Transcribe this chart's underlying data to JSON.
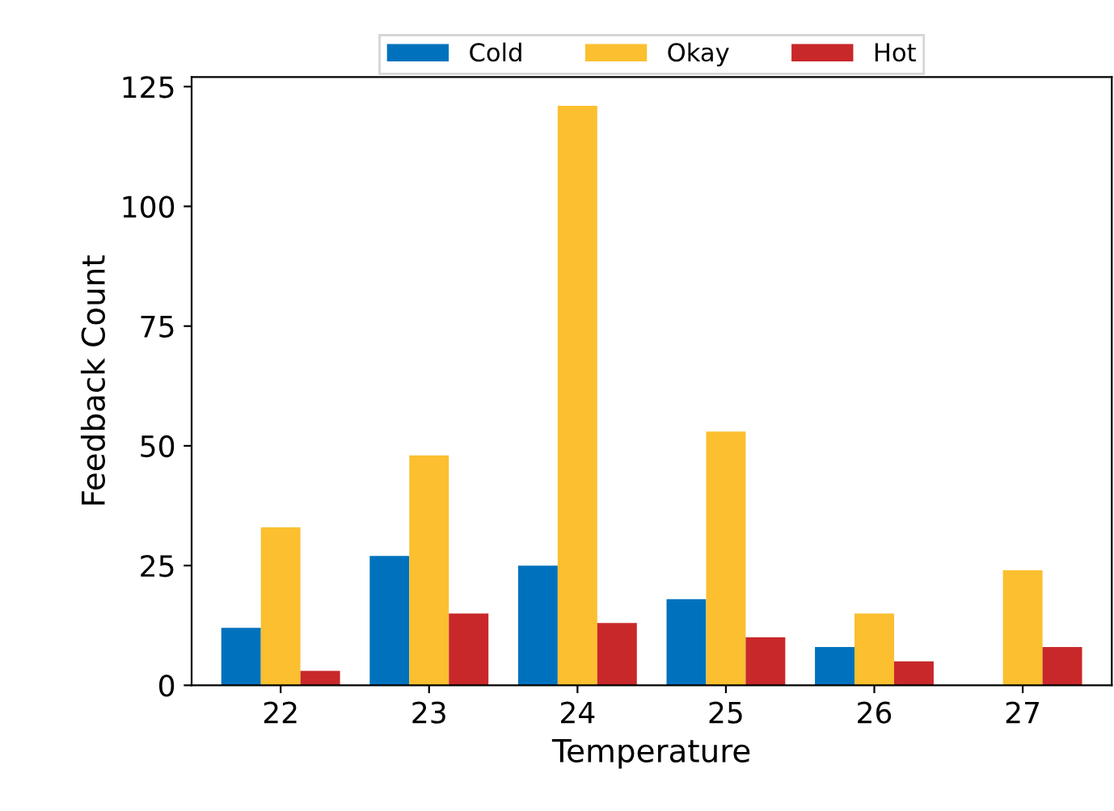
{
  "chart_data": {
    "type": "bar",
    "xlabel": "Temperature",
    "ylabel": "Feedback Count",
    "categories": [
      "22",
      "23",
      "24",
      "25",
      "26",
      "27"
    ],
    "series": [
      {
        "name": "Cold",
        "color": "#0072bd",
        "values": [
          12,
          27,
          25,
          18,
          8,
          0
        ]
      },
      {
        "name": "Okay",
        "color": "#fbbf2f",
        "values": [
          33,
          48,
          121,
          53,
          15,
          24
        ]
      },
      {
        "name": "Hot",
        "color": "#c8282a",
        "values": [
          3,
          15,
          13,
          10,
          5,
          8
        ]
      }
    ],
    "ylim": [
      0,
      127
    ],
    "yticks": [
      0,
      25,
      50,
      75,
      100,
      125
    ],
    "grid": false,
    "legend": "top"
  }
}
